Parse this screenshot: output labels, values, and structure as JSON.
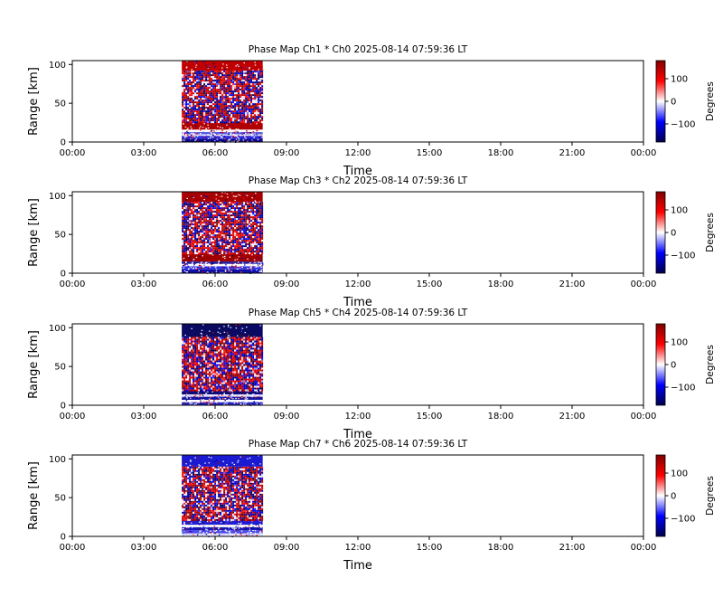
{
  "chart_data": [
    {
      "type": "heatmap",
      "title": "Phase Map Ch1 * Ch0 2025-08-14 07:59:36 LT",
      "xlabel": "Time",
      "ylabel": "Range [km]",
      "xticks": [
        "00:00",
        "03:00",
        "06:00",
        "09:00",
        "12:00",
        "15:00",
        "18:00",
        "21:00",
        "00:00"
      ],
      "xlim_hours": [
        0,
        24
      ],
      "yticks": [
        "0",
        "50",
        "100"
      ],
      "ylim": [
        0,
        105
      ],
      "data_span_hours": [
        4.6,
        8.0
      ],
      "range_profile": [
        {
          "from": 0,
          "to": 4,
          "fill": "#0a0a8c"
        },
        {
          "from": 4,
          "to": 8,
          "fill": "#2a2ad8"
        },
        {
          "from": 8,
          "to": 10,
          "fill": "#d8d8ff"
        },
        {
          "from": 10,
          "to": 13,
          "fill": "#5a5ae0"
        },
        {
          "from": 13,
          "to": 16,
          "fill": "#ffffff"
        },
        {
          "from": 16,
          "to": 25,
          "fill": "#b00000"
        },
        {
          "from": 25,
          "to": 92,
          "fill": "noise"
        },
        {
          "from": 92,
          "to": 105,
          "fill": "#c00000"
        }
      ],
      "colorbar": {
        "label": "Degrees",
        "ticks": [
          "100",
          "0",
          "−100"
        ],
        "tick_values": [
          100,
          0,
          -100
        ],
        "vmin": -180,
        "vmax": 180
      }
    },
    {
      "type": "heatmap",
      "title": "Phase Map Ch3 * Ch2 2025-08-14 07:59:36 LT",
      "xlabel": "Time",
      "ylabel": "Range [km]",
      "xticks": [
        "00:00",
        "03:00",
        "06:00",
        "09:00",
        "12:00",
        "15:00",
        "18:00",
        "21:00",
        "00:00"
      ],
      "xlim_hours": [
        0,
        24
      ],
      "yticks": [
        "0",
        "50",
        "100"
      ],
      "ylim": [
        0,
        105
      ],
      "data_span_hours": [
        4.6,
        8.0
      ],
      "range_profile": [
        {
          "from": 0,
          "to": 5,
          "fill": "#1010a8"
        },
        {
          "from": 5,
          "to": 9,
          "fill": "#3030e0"
        },
        {
          "from": 9,
          "to": 12,
          "fill": "#ffffff"
        },
        {
          "from": 12,
          "to": 15,
          "fill": "#1a1aa0"
        },
        {
          "from": 15,
          "to": 25,
          "fill": "#a00000"
        },
        {
          "from": 25,
          "to": 92,
          "fill": "noise"
        },
        {
          "from": 92,
          "to": 105,
          "fill": "#a80000"
        }
      ],
      "colorbar": {
        "label": "Degrees",
        "ticks": [
          "100",
          "0",
          "−100"
        ],
        "tick_values": [
          100,
          0,
          -100
        ],
        "vmin": -180,
        "vmax": 180
      }
    },
    {
      "type": "heatmap",
      "title": "Phase Map Ch5 * Ch4 2025-08-14 07:59:36 LT",
      "xlabel": "Time",
      "ylabel": "Range [km]",
      "xticks": [
        "00:00",
        "03:00",
        "06:00",
        "09:00",
        "12:00",
        "15:00",
        "18:00",
        "21:00",
        "00:00"
      ],
      "xlim_hours": [
        0,
        24
      ],
      "yticks": [
        "0",
        "50",
        "100"
      ],
      "ylim": [
        0,
        105
      ],
      "data_span_hours": [
        4.6,
        8.0
      ],
      "range_profile": [
        {
          "from": 0,
          "to": 4,
          "fill": "#2828c8"
        },
        {
          "from": 4,
          "to": 7,
          "fill": "#ffffff"
        },
        {
          "from": 7,
          "to": 11,
          "fill": "#1414a0"
        },
        {
          "from": 11,
          "to": 14,
          "fill": "#e0e0ff"
        },
        {
          "from": 14,
          "to": 20,
          "fill": "#0c0c78"
        },
        {
          "from": 20,
          "to": 88,
          "fill": "noise"
        },
        {
          "from": 88,
          "to": 105,
          "fill": "#0a0a60"
        }
      ],
      "colorbar": {
        "label": "Degrees",
        "ticks": [
          "100",
          "0",
          "−100"
        ],
        "tick_values": [
          100,
          0,
          -100
        ],
        "vmin": -180,
        "vmax": 180
      }
    },
    {
      "type": "heatmap",
      "title": "Phase Map Ch7 * Ch6 2025-08-14 07:59:36 LT",
      "xlabel": "Time",
      "ylabel": "Range [km]",
      "xticks": [
        "00:00",
        "03:00",
        "06:00",
        "09:00",
        "12:00",
        "15:00",
        "18:00",
        "21:00",
        "00:00"
      ],
      "xlim_hours": [
        0,
        24
      ],
      "yticks": [
        "0",
        "50",
        "100"
      ],
      "ylim": [
        0,
        105
      ],
      "data_span_hours": [
        4.6,
        8.0
      ],
      "range_profile": [
        {
          "from": 0,
          "to": 4,
          "fill": "#d8d8ff"
        },
        {
          "from": 4,
          "to": 8,
          "fill": "#4a4ae8"
        },
        {
          "from": 8,
          "to": 12,
          "fill": "#1818b0"
        },
        {
          "from": 12,
          "to": 15,
          "fill": "#ffffff"
        },
        {
          "from": 15,
          "to": 22,
          "fill": "#2020d0"
        },
        {
          "from": 22,
          "to": 90,
          "fill": "noise"
        },
        {
          "from": 90,
          "to": 105,
          "fill": "#1a1ad0"
        }
      ],
      "colorbar": {
        "label": "Degrees",
        "ticks": [
          "100",
          "0",
          "−100"
        ],
        "tick_values": [
          100,
          0,
          -100
        ],
        "vmin": -180,
        "vmax": 180
      }
    }
  ],
  "colors": {
    "colormap": [
      "#00004c",
      "#0000ff",
      "#ffffff",
      "#ff0000",
      "#800000"
    ],
    "axes": "#000000",
    "background": "#ffffff"
  }
}
